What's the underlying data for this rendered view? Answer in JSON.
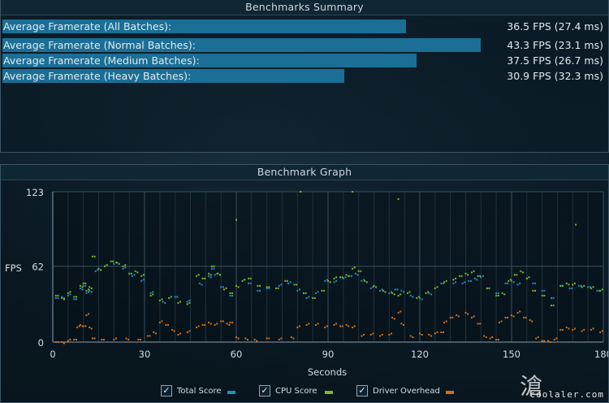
{
  "summary": {
    "title": "Benchmarks Summary",
    "rows": [
      {
        "label": "Average Framerate (All Batches):",
        "value": "36.5 FPS (27.4 ms)",
        "fps": 36.5
      },
      {
        "label": "Average Framerate (Normal Batches):",
        "value": "43.3 FPS (23.1 ms)",
        "fps": 43.3
      },
      {
        "label": "Average Framerate (Medium Batches):",
        "value": "37.5 FPS (26.7 ms)",
        "fps": 37.5
      },
      {
        "label": "Average Framerate (Heavy Batches):",
        "value": "30.9 FPS (32.3 ms)",
        "fps": 30.9
      }
    ]
  },
  "graph": {
    "title": "Benchmark Graph",
    "ylabel": "FPS",
    "xlabel": "Seconds",
    "legend": [
      {
        "label": "Total Score",
        "checked": true,
        "color": "#1f8fc0"
      },
      {
        "label": "CPU Score",
        "checked": true,
        "color": "#7db62b"
      },
      {
        "label": "Driver Overhead",
        "checked": true,
        "color": "#d0701c"
      }
    ]
  },
  "chart_data": {
    "type": "scatter",
    "title": "Benchmark Graph",
    "xlabel": "Seconds",
    "ylabel": "FPS",
    "xlim": [
      0,
      180
    ],
    "ylim": [
      0,
      123
    ],
    "xticks": [
      0,
      30,
      60,
      90,
      120,
      150,
      180
    ],
    "yticks": [
      0,
      62,
      123
    ],
    "grid": true,
    "legend_position": "bottom",
    "series": [
      {
        "name": "Total Score",
        "color": "#1f8fc0",
        "points": [
          [
            1,
            36
          ],
          [
            3,
            37
          ],
          [
            5,
            38
          ],
          [
            7,
            35
          ],
          [
            9,
            44
          ],
          [
            10,
            46
          ],
          [
            11,
            40
          ],
          [
            12,
            42
          ],
          [
            14,
            58
          ],
          [
            17,
            62
          ],
          [
            20,
            64
          ],
          [
            23,
            60
          ],
          [
            26,
            54
          ],
          [
            29,
            50
          ],
          [
            32,
            40
          ],
          [
            36,
            33
          ],
          [
            40,
            37
          ],
          [
            44,
            33
          ],
          [
            48,
            48
          ],
          [
            51,
            54
          ],
          [
            52,
            60
          ],
          [
            53,
            55
          ],
          [
            55,
            45
          ],
          [
            58,
            38
          ],
          [
            62,
            50
          ],
          [
            64,
            48
          ],
          [
            67,
            42
          ],
          [
            70,
            44
          ],
          [
            74,
            46
          ],
          [
            77,
            48
          ],
          [
            80,
            42
          ],
          [
            83,
            36
          ],
          [
            86,
            40
          ],
          [
            89,
            50
          ],
          [
            92,
            49
          ],
          [
            95,
            52
          ],
          [
            97,
            54
          ],
          [
            99,
            56
          ],
          [
            101,
            50
          ],
          [
            104,
            44
          ],
          [
            107,
            42
          ],
          [
            110,
            40
          ],
          [
            112,
            43
          ],
          [
            114,
            42
          ],
          [
            117,
            38
          ],
          [
            120,
            36
          ],
          [
            123,
            40
          ],
          [
            127,
            48
          ],
          [
            131,
            48
          ],
          [
            134,
            48
          ],
          [
            136,
            50
          ],
          [
            138,
            52
          ],
          [
            140,
            53
          ],
          [
            142,
            44
          ],
          [
            145,
            40
          ],
          [
            148,
            48
          ],
          [
            150,
            50
          ],
          [
            152,
            47
          ],
          [
            155,
            52
          ],
          [
            157,
            48
          ],
          [
            160,
            42
          ],
          [
            163,
            36
          ],
          [
            166,
            46
          ],
          [
            169,
            44
          ],
          [
            172,
            46
          ],
          [
            175,
            45
          ],
          [
            178,
            42
          ]
        ]
      },
      {
        "name": "CPU Score",
        "color": "#7db62b",
        "points": [
          [
            1,
            38
          ],
          [
            3,
            36
          ],
          [
            5,
            40
          ],
          [
            7,
            37
          ],
          [
            9,
            46
          ],
          [
            10,
            48
          ],
          [
            11,
            42
          ],
          [
            12,
            45
          ],
          [
            13,
            70
          ],
          [
            15,
            60
          ],
          [
            17,
            62
          ],
          [
            19,
            66
          ],
          [
            21,
            65
          ],
          [
            23,
            62
          ],
          [
            25,
            56
          ],
          [
            27,
            58
          ],
          [
            29,
            54
          ],
          [
            32,
            38
          ],
          [
            35,
            34
          ],
          [
            38,
            36
          ],
          [
            41,
            32
          ],
          [
            44,
            31
          ],
          [
            47,
            54
          ],
          [
            49,
            52
          ],
          [
            51,
            56
          ],
          [
            52,
            62
          ],
          [
            54,
            56
          ],
          [
            56,
            43
          ],
          [
            58,
            40
          ],
          [
            60,
            46
          ],
          [
            62,
            50
          ],
          [
            64,
            52
          ],
          [
            67,
            46
          ],
          [
            70,
            45
          ],
          [
            73,
            44
          ],
          [
            76,
            50
          ],
          [
            79,
            47
          ],
          [
            82,
            40
          ],
          [
            85,
            36
          ],
          [
            88,
            42
          ],
          [
            90,
            50
          ],
          [
            92,
            52
          ],
          [
            94,
            53
          ],
          [
            96,
            55
          ],
          [
            98,
            60
          ],
          [
            100,
            58
          ],
          [
            102,
            50
          ],
          [
            105,
            46
          ],
          [
            108,
            42
          ],
          [
            111,
            40
          ],
          [
            113,
            38
          ],
          [
            116,
            40
          ],
          [
            119,
            36
          ],
          [
            122,
            40
          ],
          [
            125,
            44
          ],
          [
            128,
            49
          ],
          [
            131,
            51
          ],
          [
            133,
            54
          ],
          [
            135,
            56
          ],
          [
            137,
            57
          ],
          [
            139,
            54
          ],
          [
            142,
            44
          ],
          [
            145,
            38
          ],
          [
            147,
            40
          ],
          [
            149,
            50
          ],
          [
            151,
            55
          ],
          [
            153,
            58
          ],
          [
            155,
            52
          ],
          [
            157,
            42
          ],
          [
            160,
            38
          ],
          [
            163,
            30
          ],
          [
            166,
            46
          ],
          [
            168,
            48
          ],
          [
            170,
            47
          ],
          [
            173,
            45
          ],
          [
            176,
            44
          ],
          [
            179,
            42
          ]
        ]
      },
      {
        "name": "Driver Overhead",
        "color": "#d0701c",
        "points": [
          [
            1,
            0
          ],
          [
            3,
            0
          ],
          [
            5,
            1
          ],
          [
            7,
            2
          ],
          [
            8,
            12
          ],
          [
            9,
            14
          ],
          [
            10,
            13
          ],
          [
            11,
            22
          ],
          [
            12,
            12
          ],
          [
            13,
            3
          ],
          [
            16,
            2
          ],
          [
            20,
            2
          ],
          [
            24,
            3
          ],
          [
            28,
            2
          ],
          [
            31,
            5
          ],
          [
            33,
            8
          ],
          [
            35,
            16
          ],
          [
            37,
            14
          ],
          [
            39,
            10
          ],
          [
            41,
            6
          ],
          [
            44,
            8
          ],
          [
            47,
            12
          ],
          [
            49,
            14
          ],
          [
            51,
            16
          ],
          [
            53,
            14
          ],
          [
            55,
            17
          ],
          [
            57,
            15
          ],
          [
            58,
            16
          ],
          [
            60,
            4
          ],
          [
            63,
            3
          ],
          [
            66,
            2
          ],
          [
            70,
            3
          ],
          [
            74,
            2
          ],
          [
            78,
            4
          ],
          [
            80,
            12
          ],
          [
            83,
            14
          ],
          [
            86,
            14
          ],
          [
            89,
            12
          ],
          [
            92,
            14
          ],
          [
            94,
            13
          ],
          [
            96,
            14
          ],
          [
            98,
            12
          ],
          [
            101,
            5
          ],
          [
            104,
            6
          ],
          [
            107,
            5
          ],
          [
            110,
            6
          ],
          [
            111,
            20
          ],
          [
            113,
            24
          ],
          [
            114,
            15
          ],
          [
            117,
            5
          ],
          [
            120,
            7
          ],
          [
            123,
            6
          ],
          [
            125,
            7
          ],
          [
            127,
            8
          ],
          [
            128,
            16
          ],
          [
            130,
            20
          ],
          [
            132,
            22
          ],
          [
            135,
            24
          ],
          [
            137,
            20
          ],
          [
            139,
            15
          ],
          [
            141,
            5
          ],
          [
            143,
            3
          ],
          [
            145,
            2
          ],
          [
            146,
            16
          ],
          [
            148,
            20
          ],
          [
            150,
            22
          ],
          [
            152,
            24
          ],
          [
            154,
            20
          ],
          [
            156,
            18
          ],
          [
            158,
            3
          ],
          [
            160,
            1
          ],
          [
            162,
            1
          ],
          [
            164,
            2
          ],
          [
            166,
            10
          ],
          [
            168,
            12
          ],
          [
            170,
            10
          ],
          [
            173,
            9
          ],
          [
            176,
            10
          ],
          [
            179,
            8
          ]
        ]
      }
    ],
    "outliers": [
      [
        98,
        123
      ],
      [
        113,
        117
      ],
      [
        60,
        100
      ],
      [
        81,
        125
      ],
      [
        171,
        96
      ]
    ]
  },
  "watermark": {
    "glyph": "滄",
    "text": "coolaler.com"
  }
}
